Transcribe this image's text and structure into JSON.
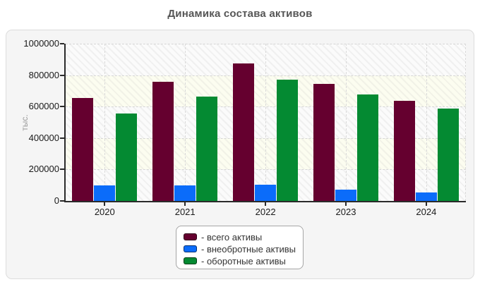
{
  "window": {
    "title": "Динамика состава активов"
  },
  "colors": {
    "total": "#65002f",
    "noncurrent": "#0b6cfa",
    "current": "#048a32",
    "panel_bg": "#f5f5f5",
    "title_text": "#555555",
    "axis": "#2b2b2b"
  },
  "chart_data": {
    "type": "bar",
    "title": "Динамика состава активов",
    "xlabel": "",
    "ylabel": "тыс.",
    "categories": [
      "2020",
      "2021",
      "2022",
      "2023",
      "2024"
    ],
    "series": [
      {
        "key": "total",
        "name": "всего активы",
        "legend_label": "- всего активы",
        "color": "#65002f",
        "values": [
          655000,
          760000,
          875000,
          745000,
          638000
        ]
      },
      {
        "key": "noncurrent",
        "name": "внеобротные активы",
        "legend_label": "- внеобротные активы",
        "color": "#0b6cfa",
        "values": [
          100000,
          97000,
          105000,
          70000,
          52000
        ]
      },
      {
        "key": "current",
        "name": "оборотные активы",
        "legend_label": "- оборотные активы",
        "color": "#048a32",
        "values": [
          555000,
          663000,
          770000,
          675000,
          586000
        ]
      }
    ],
    "ylim": [
      0,
      1000000
    ],
    "yticks": [
      0,
      200000,
      400000,
      600000,
      800000,
      1000000
    ],
    "grid": "dashed horizontal and vertical",
    "plot_background": "alternating hatched bands",
    "legend_position": "bottom-center"
  }
}
